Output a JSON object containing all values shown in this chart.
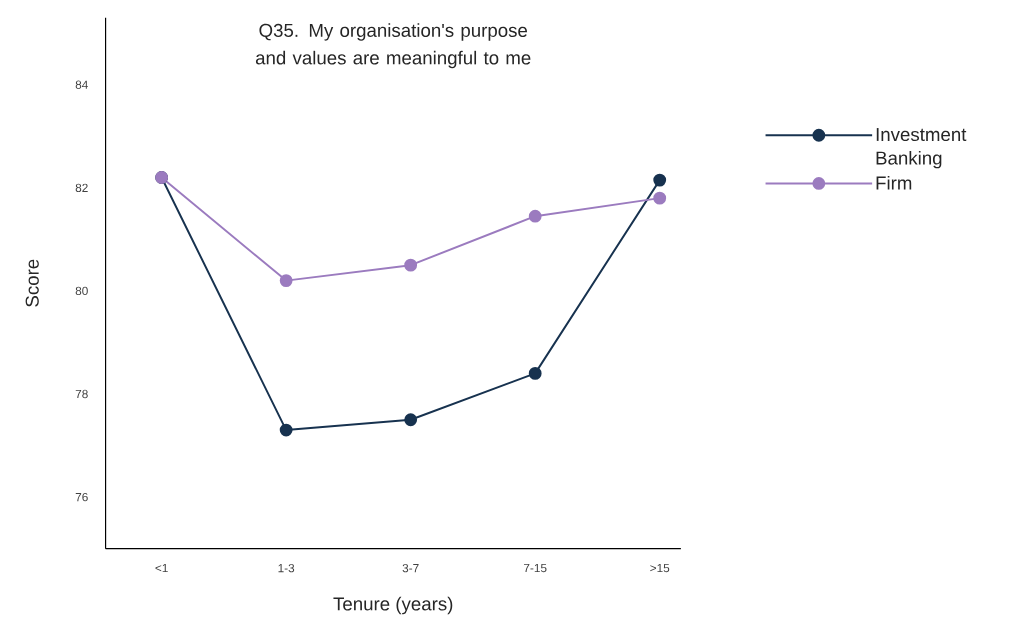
{
  "chart_data": {
    "type": "line",
    "title": "Q35. My organisation's purpose and values are meaningful to me",
    "xlabel": "Tenure (years)",
    "ylabel": "Score",
    "categories": [
      "<1",
      "1-3",
      "3-7",
      "7-15",
      ">15"
    ],
    "series": [
      {
        "name": "Investment Banking",
        "color": "#17324f",
        "values": [
          82.2,
          77.3,
          77.5,
          78.4,
          82.15
        ]
      },
      {
        "name": "Firm",
        "color": "#9b7bbf",
        "values": [
          82.2,
          80.2,
          80.5,
          81.45,
          81.8
        ]
      }
    ],
    "ylim": [
      75,
      85.3
    ],
    "yticks": [
      76,
      78,
      80,
      82,
      84
    ],
    "grid": false,
    "legend": "right",
    "marker": "circle",
    "line_style": "solid"
  }
}
